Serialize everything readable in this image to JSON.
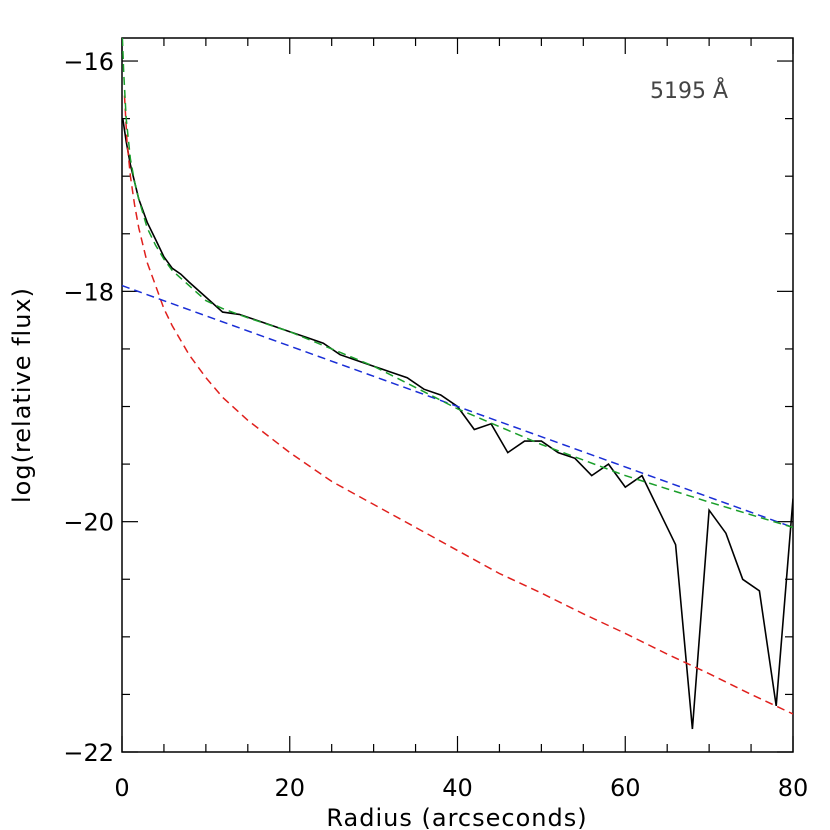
{
  "chart_data": {
    "type": "line",
    "xlabel": "Radius (arcseconds)",
    "ylabel": "log(relative flux)",
    "annotation": "5195 Å",
    "xlim": [
      0,
      80
    ],
    "ylim": [
      -22,
      -15.8
    ],
    "x_ticks": [
      0,
      20,
      40,
      60,
      80
    ],
    "x_tick_labels": [
      "0",
      "20",
      "40",
      "60",
      "80"
    ],
    "x_minor_step": 5,
    "y_ticks": [
      -22,
      -20,
      -18,
      -16
    ],
    "y_tick_labels": [
      "−22",
      "−20",
      "−18",
      "−16"
    ],
    "y_minor_step": 0.5,
    "grid": false,
    "legend": "none",
    "series": [
      {
        "style": "solid",
        "color": "#000000",
        "x": [
          0.1,
          0.5,
          1,
          1.5,
          2,
          3,
          4,
          5,
          6,
          7,
          8,
          10,
          12,
          14,
          16,
          18,
          20,
          22,
          24,
          26,
          28,
          30,
          32,
          34,
          36,
          38,
          40,
          42,
          44,
          46,
          48,
          50,
          52,
          54,
          56,
          58,
          60,
          62,
          64,
          66,
          68,
          70,
          72,
          74,
          76,
          78,
          80
        ],
        "y": [
          -16.5,
          -16.7,
          -16.9,
          -17.05,
          -17.2,
          -17.4,
          -17.55,
          -17.7,
          -17.8,
          -17.85,
          -17.92,
          -18.05,
          -18.18,
          -18.2,
          -18.25,
          -18.3,
          -18.35,
          -18.4,
          -18.45,
          -18.55,
          -18.6,
          -18.65,
          -18.7,
          -18.75,
          -18.85,
          -18.9,
          -19.0,
          -19.2,
          -19.15,
          -19.4,
          -19.3,
          -19.3,
          -19.4,
          -19.45,
          -19.6,
          -19.5,
          -19.7,
          -19.6,
          -19.9,
          -20.2,
          -21.8,
          -19.9,
          -20.1,
          -20.5,
          -20.6,
          -21.6,
          -19.8
        ]
      },
      {
        "style": "dashed",
        "color": "#e0201d",
        "x": [
          0.3,
          0.6,
          1,
          1.5,
          2,
          3,
          4,
          5,
          6,
          8,
          10,
          12,
          15,
          20,
          25,
          30,
          35,
          40,
          45,
          50,
          55,
          60,
          65,
          70,
          75,
          80
        ],
        "y": [
          -16.3,
          -16.7,
          -17.0,
          -17.25,
          -17.45,
          -17.75,
          -17.95,
          -18.15,
          -18.3,
          -18.55,
          -18.75,
          -18.92,
          -19.12,
          -19.4,
          -19.65,
          -19.85,
          -20.05,
          -20.25,
          -20.45,
          -20.62,
          -20.8,
          -20.97,
          -21.15,
          -21.32,
          -21.5,
          -21.67
        ]
      },
      {
        "style": "dashed",
        "color": "#1a2ed6",
        "x": [
          0,
          80
        ],
        "y": [
          -17.95,
          -20.05
        ]
      },
      {
        "style": "dashed",
        "color": "#1a9e2a",
        "x": [
          0.05,
          0.2,
          0.5,
          1,
          1.5,
          2,
          3,
          4,
          5,
          6,
          8,
          10,
          12,
          15,
          20,
          25,
          30,
          40,
          50,
          60,
          70,
          80
        ],
        "y": [
          -15.8,
          -16.1,
          -16.5,
          -16.85,
          -17.05,
          -17.2,
          -17.45,
          -17.6,
          -17.72,
          -17.82,
          -17.95,
          -18.08,
          -18.15,
          -18.23,
          -18.35,
          -18.5,
          -18.65,
          -19.02,
          -19.33,
          -19.6,
          -19.83,
          -20.05
        ]
      }
    ]
  }
}
